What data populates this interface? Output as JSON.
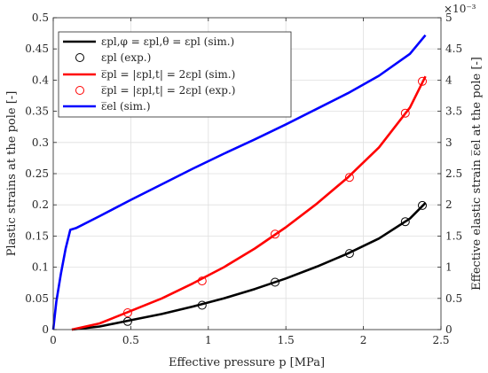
{
  "chart_data": {
    "type": "line",
    "xlabel": "Effective pressure p [MPa]",
    "ylabel": "Plastic strains at the pole [-]",
    "y2label": "Effective elastic strain ε̅el at the pole [-]",
    "y2exponent": "×10⁻³",
    "xlim": [
      0,
      2.5
    ],
    "ylim": [
      0,
      0.5
    ],
    "y2lim": [
      0,
      0.005
    ],
    "xticks": [
      "0",
      "0.5",
      "1",
      "1.5",
      "2",
      "2.5"
    ],
    "yticks": [
      "0",
      "0.05",
      "0.1",
      "0.15",
      "0.2",
      "0.25",
      "0.3",
      "0.35",
      "0.4",
      "0.45",
      "0.5"
    ],
    "y2ticks": [
      "0",
      "0.5",
      "1",
      "1.5",
      "2",
      "2.5",
      "3",
      "3.5",
      "4",
      "4.5",
      "5"
    ],
    "grid": true,
    "legend_position": "top-left",
    "series": [
      {
        "name": "εpl,φ = εpl,θ = εpl (sim.)",
        "style": "line",
        "color": "#000000",
        "axis": "left",
        "x": [
          0.12,
          0.3,
          0.5,
          0.7,
          0.9,
          1.1,
          1.3,
          1.5,
          1.7,
          1.9,
          2.1,
          2.3,
          2.4
        ],
        "y": [
          0.0,
          0.005,
          0.015,
          0.025,
          0.037,
          0.05,
          0.065,
          0.082,
          0.101,
          0.122,
          0.146,
          0.178,
          0.203
        ]
      },
      {
        "name": "εpl (exp.)",
        "style": "markers",
        "color": "#000000",
        "axis": "left",
        "x": [
          0.48,
          0.96,
          1.43,
          1.91,
          2.27,
          2.38
        ],
        "y": [
          0.013,
          0.039,
          0.076,
          0.122,
          0.173,
          0.199
        ]
      },
      {
        "name": "ε̅pl = |εpl,t| = 2εpl (sim.)",
        "style": "line",
        "color": "#ff0000",
        "axis": "left",
        "x": [
          0.12,
          0.3,
          0.5,
          0.7,
          0.9,
          1.1,
          1.3,
          1.5,
          1.7,
          1.9,
          2.1,
          2.3,
          2.4
        ],
        "y": [
          0.0,
          0.01,
          0.03,
          0.05,
          0.074,
          0.1,
          0.13,
          0.164,
          0.202,
          0.244,
          0.292,
          0.356,
          0.406
        ]
      },
      {
        "name": "ε̅pl = |εpl,t| = 2εpl (exp.)",
        "style": "markers",
        "color": "#ff0000",
        "axis": "left",
        "x": [
          0.48,
          0.96,
          1.43,
          1.91,
          2.27,
          2.38
        ],
        "y": [
          0.027,
          0.078,
          0.153,
          0.244,
          0.347,
          0.398
        ]
      },
      {
        "name": "ε̅el (sim.)",
        "style": "line",
        "color": "#0000ff",
        "axis": "right",
        "x": [
          0.0,
          0.02,
          0.05,
          0.08,
          0.11,
          0.15,
          0.3,
          0.5,
          0.7,
          0.9,
          1.1,
          1.3,
          1.5,
          1.7,
          1.9,
          2.1,
          2.3,
          2.4
        ],
        "y": [
          0.0,
          0.00045,
          0.0009,
          0.0013,
          0.0016,
          0.00163,
          0.00182,
          0.00208,
          0.00233,
          0.00258,
          0.00282,
          0.00305,
          0.00329,
          0.00354,
          0.00379,
          0.00407,
          0.00442,
          0.00472
        ]
      }
    ]
  }
}
